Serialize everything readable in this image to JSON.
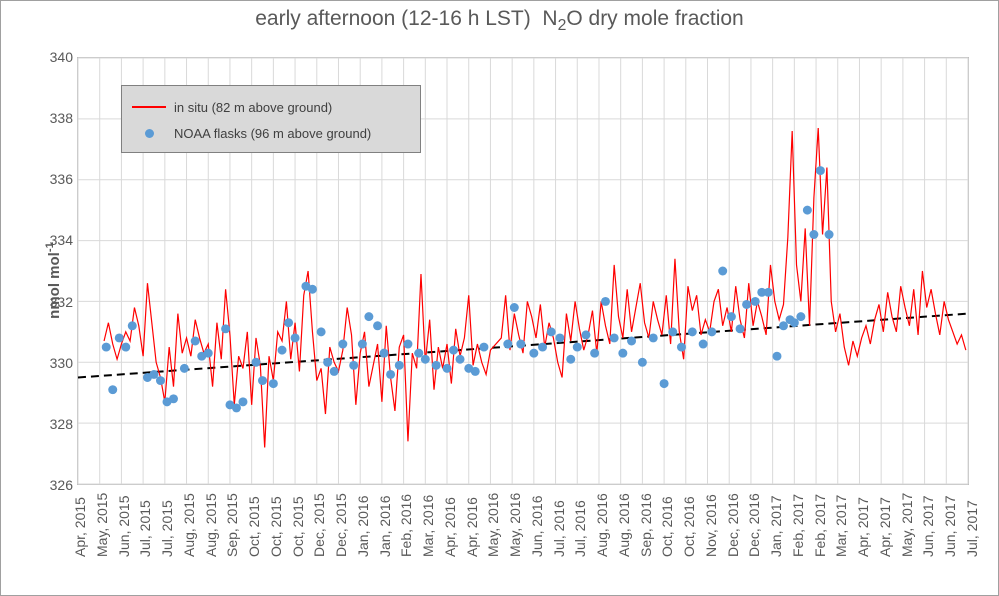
{
  "chart": {
    "type": "line+scatter+trend",
    "title_html": "early afternoon (12-16 h LST) &nbsp;N<sub>2</sub>O dry mole fraction",
    "title_fontsize": 21,
    "title_color": "#595959",
    "ylabel_html": "nmol mol<sup>-1</sup>",
    "ylabel_fontsize": 15,
    "background_color": "#ffffff",
    "plot_border_color": "#bfbfbf",
    "grid_color": "#d9d9d9",
    "axis_font_color": "#595959",
    "x_axis": {
      "labels": [
        "Apr, 2015",
        "May, 2015",
        "Jun, 2015",
        "Jul, 2015",
        "Jul, 2015",
        "Aug, 2015",
        "Aug, 2015",
        "Sep, 2015",
        "Oct, 2015",
        "Oct, 2015",
        "Oct, 2015",
        "Dec, 2015",
        "Dec, 2015",
        "Jan, 2016",
        "Jan, 2016",
        "Feb, 2016",
        "Mar, 2016",
        "Apr, 2016",
        "Apr, 2016",
        "May, 2016",
        "May, 2016",
        "Jun, 2016",
        "Jul, 2016",
        "Jul, 2016",
        "Aug, 2016",
        "Aug, 2016",
        "Sep, 2016",
        "Oct, 2016",
        "Oct, 2016",
        "Nov, 2016",
        "Dec, 2016",
        "Dec, 2016",
        "Jan, 2017",
        "Feb, 2017",
        "Feb, 2017",
        "Mar, 2017",
        "Apr, 2017",
        "Apr, 2017",
        "May, 2017",
        "Jun, 2017",
        "Jun, 2017",
        "Jul, 2017"
      ],
      "rotation": -90,
      "fontsize": 14
    },
    "y_axis": {
      "min": 326,
      "max": 340,
      "tick_step": 2,
      "ticks": [
        326,
        328,
        330,
        332,
        334,
        336,
        338,
        340
      ],
      "fontsize": 14
    },
    "legend": {
      "position": "upper-left-inside",
      "background_color": "#d9d9d9",
      "border_color": "#808080",
      "items": [
        {
          "type": "line",
          "color": "#ff0000",
          "label": "in situ (82 m above ground)"
        },
        {
          "type": "marker",
          "color": "#5b9bd5",
          "label": "NOAA flasks (96 m above ground)"
        }
      ]
    },
    "series_insitu": {
      "type": "line",
      "color": "#ff0000",
      "line_width": 1.2,
      "data": [
        [
          1.2,
          330.7
        ],
        [
          1.4,
          331.3
        ],
        [
          1.6,
          330.6
        ],
        [
          1.8,
          330.1
        ],
        [
          2.0,
          330.6
        ],
        [
          2.2,
          331.0
        ],
        [
          2.4,
          330.7
        ],
        [
          2.6,
          331.8
        ],
        [
          2.8,
          331.2
        ],
        [
          3.0,
          330.2
        ],
        [
          3.2,
          332.6
        ],
        [
          3.4,
          331.3
        ],
        [
          3.6,
          330.0
        ],
        [
          3.8,
          329.5
        ],
        [
          4.0,
          328.7
        ],
        [
          4.2,
          330.5
        ],
        [
          4.4,
          329.2
        ],
        [
          4.6,
          331.6
        ],
        [
          4.8,
          330.3
        ],
        [
          5.0,
          330.8
        ],
        [
          5.2,
          330.2
        ],
        [
          5.4,
          331.4
        ],
        [
          5.6,
          330.8
        ],
        [
          5.8,
          330.3
        ],
        [
          6.0,
          330.6
        ],
        [
          6.2,
          329.2
        ],
        [
          6.4,
          331.3
        ],
        [
          6.6,
          330.1
        ],
        [
          6.8,
          332.4
        ],
        [
          7.0,
          330.9
        ],
        [
          7.2,
          328.6
        ],
        [
          7.4,
          330.2
        ],
        [
          7.6,
          329.8
        ],
        [
          7.8,
          331.0
        ],
        [
          8.0,
          328.6
        ],
        [
          8.2,
          330.8
        ],
        [
          8.4,
          329.9
        ],
        [
          8.6,
          327.2
        ],
        [
          8.8,
          330.2
        ],
        [
          9.0,
          329.4
        ],
        [
          9.2,
          331.0
        ],
        [
          9.4,
          330.7
        ],
        [
          9.6,
          332.0
        ],
        [
          9.8,
          330.1
        ],
        [
          10.0,
          331.3
        ],
        [
          10.2,
          329.7
        ],
        [
          10.4,
          332.2
        ],
        [
          10.6,
          333.0
        ],
        [
          10.8,
          331.0
        ],
        [
          11.0,
          329.4
        ],
        [
          11.2,
          329.8
        ],
        [
          11.4,
          328.3
        ],
        [
          11.6,
          330.5
        ],
        [
          11.8,
          330.0
        ],
        [
          12.0,
          329.7
        ],
        [
          12.2,
          330.4
        ],
        [
          12.4,
          331.8
        ],
        [
          12.6,
          330.9
        ],
        [
          12.8,
          328.6
        ],
        [
          13.0,
          330.3
        ],
        [
          13.2,
          331.0
        ],
        [
          13.4,
          329.2
        ],
        [
          13.6,
          329.9
        ],
        [
          13.8,
          330.6
        ],
        [
          14.0,
          328.7
        ],
        [
          14.2,
          331.2
        ],
        [
          14.4,
          329.5
        ],
        [
          14.6,
          328.4
        ],
        [
          14.8,
          330.5
        ],
        [
          15.0,
          330.9
        ],
        [
          15.2,
          327.4
        ],
        [
          15.4,
          330.3
        ],
        [
          15.6,
          329.8
        ],
        [
          15.8,
          332.9
        ],
        [
          16.0,
          330.0
        ],
        [
          16.2,
          331.4
        ],
        [
          16.4,
          329.1
        ],
        [
          16.6,
          330.5
        ],
        [
          16.8,
          329.8
        ],
        [
          17.0,
          330.6
        ],
        [
          17.2,
          329.3
        ],
        [
          17.4,
          331.1
        ],
        [
          17.6,
          330.2
        ],
        [
          17.8,
          330.8
        ],
        [
          18.0,
          332.2
        ],
        [
          18.2,
          329.9
        ],
        [
          18.4,
          330.6
        ],
        [
          18.6,
          330.0
        ],
        [
          18.8,
          329.6
        ],
        [
          19.0,
          330.4
        ],
        [
          19.5,
          330.8
        ],
        [
          19.7,
          332.2
        ],
        [
          19.9,
          330.4
        ],
        [
          20.1,
          331.6
        ],
        [
          20.3,
          330.9
        ],
        [
          20.5,
          330.3
        ],
        [
          20.7,
          332.0
        ],
        [
          20.9,
          331.5
        ],
        [
          21.1,
          330.8
        ],
        [
          21.3,
          331.9
        ],
        [
          21.5,
          330.5
        ],
        [
          21.7,
          331.3
        ],
        [
          21.9,
          330.8
        ],
        [
          22.1,
          330.0
        ],
        [
          22.3,
          329.5
        ],
        [
          22.5,
          331.6
        ],
        [
          22.7,
          330.7
        ],
        [
          22.9,
          332.0
        ],
        [
          23.1,
          331.1
        ],
        [
          23.3,
          330.4
        ],
        [
          23.5,
          330.9
        ],
        [
          23.7,
          331.7
        ],
        [
          23.9,
          330.3
        ],
        [
          24.1,
          332.0
        ],
        [
          24.3,
          331.2
        ],
        [
          24.5,
          330.6
        ],
        [
          24.7,
          333.2
        ],
        [
          24.9,
          331.5
        ],
        [
          25.1,
          330.8
        ],
        [
          25.3,
          332.4
        ],
        [
          25.5,
          331.0
        ],
        [
          25.7,
          331.8
        ],
        [
          25.9,
          332.6
        ],
        [
          26.1,
          331.3
        ],
        [
          26.3,
          330.8
        ],
        [
          26.5,
          332.0
        ],
        [
          26.7,
          331.4
        ],
        [
          26.9,
          330.9
        ],
        [
          27.1,
          332.2
        ],
        [
          27.3,
          330.6
        ],
        [
          27.5,
          333.4
        ],
        [
          27.7,
          331.0
        ],
        [
          27.9,
          330.1
        ],
        [
          28.1,
          332.5
        ],
        [
          28.3,
          331.7
        ],
        [
          28.5,
          332.2
        ],
        [
          28.7,
          330.9
        ],
        [
          28.9,
          331.4
        ],
        [
          29.1,
          331.0
        ],
        [
          29.3,
          332.0
        ],
        [
          29.5,
          332.4
        ],
        [
          29.7,
          331.2
        ],
        [
          29.9,
          331.8
        ],
        [
          30.1,
          331.0
        ],
        [
          30.3,
          332.5
        ],
        [
          30.5,
          331.4
        ],
        [
          30.7,
          330.8
        ],
        [
          30.9,
          332.6
        ],
        [
          31.1,
          331.2
        ],
        [
          31.3,
          332.0
        ],
        [
          31.5,
          331.5
        ],
        [
          31.7,
          330.9
        ],
        [
          31.9,
          333.2
        ],
        [
          32.1,
          332.0
        ],
        [
          32.3,
          331.4
        ],
        [
          32.5,
          331.9
        ],
        [
          32.7,
          334.1
        ],
        [
          32.9,
          337.6
        ],
        [
          33.1,
          333.2
        ],
        [
          33.3,
          332.0
        ],
        [
          33.5,
          334.4
        ],
        [
          33.7,
          331.2
        ],
        [
          33.9,
          335.4
        ],
        [
          34.1,
          337.7
        ],
        [
          34.3,
          334.2
        ],
        [
          34.5,
          336.4
        ],
        [
          34.7,
          332.0
        ],
        [
          34.9,
          331.0
        ],
        [
          35.1,
          331.6
        ],
        [
          35.3,
          330.5
        ],
        [
          35.5,
          329.9
        ],
        [
          35.7,
          330.7
        ],
        [
          35.9,
          330.2
        ],
        [
          36.1,
          330.8
        ],
        [
          36.3,
          331.2
        ],
        [
          36.5,
          330.6
        ],
        [
          36.7,
          331.4
        ],
        [
          36.9,
          331.9
        ],
        [
          37.1,
          331.0
        ],
        [
          37.3,
          332.3
        ],
        [
          37.5,
          331.5
        ],
        [
          37.7,
          331.0
        ],
        [
          37.9,
          332.5
        ],
        [
          38.1,
          331.8
        ],
        [
          38.3,
          331.2
        ],
        [
          38.5,
          332.4
        ],
        [
          38.7,
          330.9
        ],
        [
          38.9,
          333.0
        ],
        [
          39.1,
          331.8
        ],
        [
          39.3,
          332.4
        ],
        [
          39.5,
          331.6
        ],
        [
          39.7,
          330.9
        ],
        [
          39.9,
          332.0
        ],
        [
          40.1,
          331.4
        ],
        [
          40.3,
          331.0
        ],
        [
          40.5,
          330.6
        ],
        [
          40.7,
          330.9
        ],
        [
          40.9,
          330.4
        ]
      ]
    },
    "series_flasks": {
      "type": "scatter",
      "color": "#5b9bd5",
      "marker": "circle",
      "marker_size": 4.5,
      "data": [
        [
          1.3,
          330.5
        ],
        [
          1.6,
          329.1
        ],
        [
          1.9,
          330.8
        ],
        [
          2.2,
          330.5
        ],
        [
          2.5,
          331.2
        ],
        [
          3.2,
          329.5
        ],
        [
          3.5,
          329.6
        ],
        [
          3.8,
          329.4
        ],
        [
          4.1,
          328.7
        ],
        [
          4.4,
          328.8
        ],
        [
          4.9,
          329.8
        ],
        [
          5.4,
          330.7
        ],
        [
          5.7,
          330.2
        ],
        [
          6.0,
          330.3
        ],
        [
          6.8,
          331.1
        ],
        [
          7.0,
          328.6
        ],
        [
          7.3,
          328.5
        ],
        [
          7.6,
          328.7
        ],
        [
          8.2,
          330.0
        ],
        [
          8.5,
          329.4
        ],
        [
          9.0,
          329.3
        ],
        [
          9.4,
          330.4
        ],
        [
          9.7,
          331.3
        ],
        [
          10.0,
          330.8
        ],
        [
          10.5,
          332.5
        ],
        [
          10.8,
          332.4
        ],
        [
          11.2,
          331.0
        ],
        [
          11.5,
          330.0
        ],
        [
          11.8,
          329.7
        ],
        [
          12.2,
          330.6
        ],
        [
          12.7,
          329.9
        ],
        [
          13.1,
          330.6
        ],
        [
          13.4,
          331.5
        ],
        [
          13.8,
          331.2
        ],
        [
          14.1,
          330.3
        ],
        [
          14.4,
          329.6
        ],
        [
          14.8,
          329.9
        ],
        [
          15.2,
          330.6
        ],
        [
          15.7,
          330.3
        ],
        [
          16.0,
          330.1
        ],
        [
          16.5,
          329.9
        ],
        [
          17.0,
          329.8
        ],
        [
          17.3,
          330.4
        ],
        [
          17.6,
          330.1
        ],
        [
          18.0,
          329.8
        ],
        [
          18.3,
          329.7
        ],
        [
          18.7,
          330.5
        ],
        [
          19.8,
          330.6
        ],
        [
          20.1,
          331.8
        ],
        [
          20.4,
          330.6
        ],
        [
          21.0,
          330.3
        ],
        [
          21.4,
          330.5
        ],
        [
          21.8,
          331.0
        ],
        [
          22.2,
          330.8
        ],
        [
          22.7,
          330.1
        ],
        [
          23.0,
          330.5
        ],
        [
          23.4,
          330.9
        ],
        [
          23.8,
          330.3
        ],
        [
          24.3,
          332.0
        ],
        [
          24.7,
          330.8
        ],
        [
          25.1,
          330.3
        ],
        [
          25.5,
          330.7
        ],
        [
          26.0,
          330.0
        ],
        [
          26.5,
          330.8
        ],
        [
          27.0,
          329.3
        ],
        [
          27.4,
          331.0
        ],
        [
          27.8,
          330.5
        ],
        [
          28.3,
          331.0
        ],
        [
          28.8,
          330.6
        ],
        [
          29.2,
          331.0
        ],
        [
          29.7,
          333.0
        ],
        [
          30.1,
          331.5
        ],
        [
          30.5,
          331.1
        ],
        [
          30.8,
          331.9
        ],
        [
          31.2,
          332.0
        ],
        [
          31.5,
          332.3
        ],
        [
          31.8,
          332.3
        ],
        [
          32.2,
          330.2
        ],
        [
          32.5,
          331.2
        ],
        [
          32.8,
          331.4
        ],
        [
          33.0,
          331.3
        ],
        [
          33.3,
          331.5
        ],
        [
          33.6,
          335.0
        ],
        [
          33.9,
          334.2
        ],
        [
          34.2,
          336.3
        ],
        [
          34.6,
          334.2
        ]
      ]
    },
    "series_trend": {
      "type": "line",
      "color": "#000000",
      "line_width": 2,
      "dash": "8,5",
      "start": [
        0,
        329.5
      ],
      "end": [
        41,
        331.6
      ]
    }
  }
}
